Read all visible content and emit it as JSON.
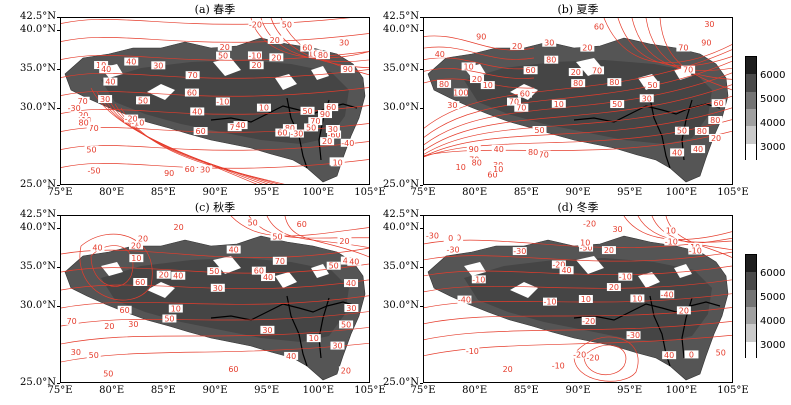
{
  "panels": [
    {
      "title": "(a) 春季",
      "labels": [
        "70",
        "80",
        "90",
        "-10",
        "30",
        "40",
        "50",
        "60",
        "70",
        "80",
        "90",
        "100",
        "70",
        "60",
        "60",
        "70",
        "20",
        "10",
        "20",
        "50",
        "60",
        "70",
        "80",
        "90",
        "30",
        "40",
        "50",
        "60",
        "10",
        "20",
        "-10",
        "-20",
        "-30",
        "-40",
        "-50",
        "-60",
        "20",
        "10",
        "50",
        "40",
        "30",
        "40",
        "50",
        "20",
        "30",
        "40",
        "10",
        "20",
        "-20",
        "-10",
        "60",
        "-30",
        "30",
        "50",
        "80",
        "20"
      ]
    },
    {
      "title": "(b) 夏季",
      "labels": [
        "70",
        "80",
        "90",
        "100",
        "80",
        "40",
        "50",
        "60",
        "70",
        "80",
        "90",
        "10",
        "20",
        "30",
        "40",
        "50",
        "60",
        "70",
        "80",
        "30",
        "40",
        "20",
        "10",
        "30",
        "60",
        "80",
        "30",
        "20",
        "10",
        "90",
        "80",
        "10",
        "50",
        "70",
        "20",
        "60",
        "70",
        "70",
        "80",
        "50",
        "60",
        "40",
        "30",
        "20",
        "10",
        "80",
        "20",
        "70"
      ]
    },
    {
      "title": "(c) 秋季",
      "labels": [
        "50",
        "60",
        "70",
        "40",
        "50",
        "60",
        "40",
        "30",
        "20",
        "50",
        "20",
        "30",
        "50",
        "40",
        "10",
        "20",
        "30",
        "40",
        "10",
        "20",
        "20",
        "30",
        "40",
        "50",
        "10",
        "20",
        "30",
        "40",
        "50",
        "60",
        "70",
        "40",
        "50",
        "60",
        "50",
        "40",
        "30",
        "20",
        "60"
      ]
    },
    {
      "title": "(d) 冬季",
      "labels": [
        "-20",
        "-10",
        "-30",
        "10",
        "0",
        "20",
        "30",
        "40",
        "50",
        "-10",
        "-20",
        "20",
        "10",
        "-30",
        "-20",
        "-10",
        "-50",
        "-40",
        "-30",
        "10",
        "0",
        "-10",
        "20",
        "10",
        "-40",
        "-10",
        "-20",
        "30",
        "40",
        "-10",
        "-10",
        "20",
        "-20",
        "-30",
        "10"
      ]
    }
  ],
  "axes": {
    "lat_labels": [
      "42.5°N",
      "40.0°N",
      "35.0°N",
      "30.0°N",
      "25.0°N"
    ],
    "lon_labels": [
      "75°E",
      "80°E",
      "85°E",
      "90°E",
      "95°E",
      "100°E",
      "105°E"
    ]
  },
  "colorbar": {
    "labels": [
      "6000",
      "5000",
      "4000",
      "3000"
    ],
    "colors": [
      "#1e1e1e",
      "#4a4a4a",
      "#747474",
      "#a0a0a0",
      "#cacaca",
      "#ffffff"
    ]
  },
  "contour_color": "#e53c2c",
  "terrain_color": "#555555"
}
